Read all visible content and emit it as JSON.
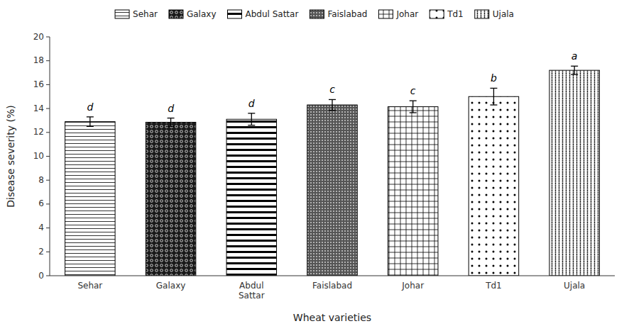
{
  "chart_data": {
    "type": "bar",
    "categories": [
      "Sehar",
      "Galaxy",
      "Abdul\nSattar",
      "Faislabad",
      "Johar",
      "Td1",
      "Ujala"
    ],
    "values": [
      12.9,
      12.85,
      13.1,
      14.3,
      14.15,
      15.0,
      17.2
    ],
    "errors": [
      0.4,
      0.35,
      0.5,
      0.45,
      0.5,
      0.7,
      0.35
    ],
    "letters": [
      "d",
      "d",
      "d",
      "c",
      "c",
      "b",
      "a"
    ],
    "legend_labels": [
      "Sehar",
      "Galaxy",
      "Abdul Sattar",
      "Faislabad",
      "Johar",
      "Td1",
      "Ujala"
    ],
    "legend": "top",
    "colors": [
      "#ffffff",
      "#1a1a1a",
      "#ffffff",
      "#555555",
      "#ffffff",
      "#ffffff",
      "#ffffff"
    ],
    "xlabel": "Wheat varieties",
    "ylabel": "Disease severity (%)",
    "ylim": [
      0,
      20
    ],
    "yticks": [
      0,
      2,
      4,
      6,
      8,
      10,
      12,
      14,
      16,
      18,
      20
    ],
    "grid": false
  }
}
